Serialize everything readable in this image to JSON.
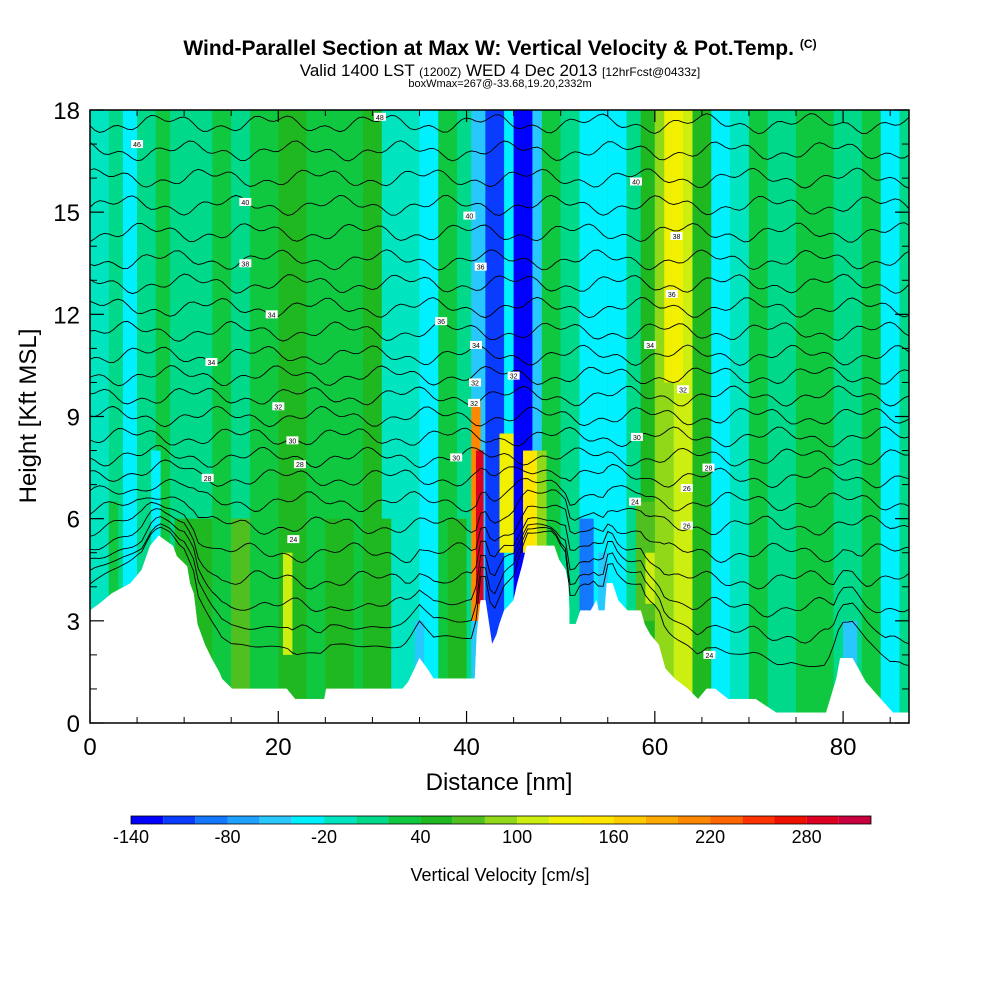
{
  "header": {
    "title": "Wind-Parallel Section at Max W: Vertical Velocity & Pot.Temp.",
    "copyright": "(C)",
    "valid_prefix": "Valid 1400 LST",
    "valid_zulu": "(1200Z)",
    "valid_date": "WED 4 Dec 2013",
    "forecast_info": "[12hrFcst@0433z]",
    "box_info": "boxWmax=267@-33.68,19.20,2332m"
  },
  "chart_data": {
    "type": "heatmap",
    "title": "Wind-Parallel Section at Max W: Vertical Velocity & Pot.Temp.",
    "xlabel": "Distance [nm]",
    "ylabel": "Height [Kft MSL]",
    "xlim": [
      0,
      87
    ],
    "ylim": [
      0,
      18
    ],
    "x_ticks": [
      0,
      20,
      40,
      60,
      80
    ],
    "x_tick_labels": [
      "0",
      "20",
      "40",
      "60",
      "80"
    ],
    "y_ticks": [
      0,
      3,
      6,
      9,
      12,
      15,
      18
    ],
    "y_tick_labels": [
      "0",
      "3",
      "6",
      "9",
      "12",
      "15",
      "18"
    ],
    "colorbar": {
      "label": "Vertical Velocity [cm/s]",
      "levels": [
        -140,
        -120,
        -100,
        -80,
        -60,
        -40,
        -20,
        0,
        20,
        40,
        60,
        80,
        100,
        120,
        140,
        160,
        180,
        200,
        220,
        240,
        260,
        280,
        300,
        320
      ],
      "tick_values": [
        -140,
        -80,
        -20,
        40,
        100,
        160,
        220,
        280
      ],
      "tick_labels": [
        "-140",
        "-80",
        "-20",
        "40",
        "100",
        "160",
        "220",
        "280"
      ],
      "colors": [
        "#0000ff",
        "#0a3cff",
        "#1478ff",
        "#1ea0ff",
        "#28c8ff",
        "#00f0ff",
        "#00e5c0",
        "#00d88a",
        "#10c840",
        "#20b820",
        "#50c020",
        "#90d818",
        "#ccee10",
        "#f0f000",
        "#ffe600",
        "#ffcc00",
        "#ffaa00",
        "#ff8800",
        "#ff6600",
        "#ff3300",
        "#ee1100",
        "#dd0022",
        "#c80040"
      ]
    },
    "velocity_columns": [
      {
        "x": [
          0,
          2
        ],
        "w": -5
      },
      {
        "x": [
          2,
          3.5
        ],
        "w": 5
      },
      {
        "x": [
          3.5,
          5
        ],
        "w": -40
      },
      {
        "x": [
          5,
          7
        ],
        "w": 10
      },
      {
        "x": [
          7,
          8.5
        ],
        "w": 25
      },
      {
        "x": [
          8.5,
          13
        ],
        "w": 10
      },
      {
        "x": [
          13,
          15
        ],
        "w": 30
      },
      {
        "x": [
          15,
          17
        ],
        "w": 15
      },
      {
        "x": [
          17,
          20
        ],
        "w": 35
      },
      {
        "x": [
          20,
          23
        ],
        "w": 55
      },
      {
        "x": [
          23,
          26
        ],
        "w": 20
      },
      {
        "x": [
          26,
          29
        ],
        "w": 35
      },
      {
        "x": [
          29,
          31
        ],
        "w": 45
      },
      {
        "x": [
          31,
          35
        ],
        "w": -10
      },
      {
        "x": [
          35,
          37
        ],
        "w": -30
      },
      {
        "x": [
          37,
          39
        ],
        "w": 20
      },
      {
        "x": [
          39,
          40.5
        ],
        "w": 0
      },
      {
        "x": [
          40.5,
          42
        ],
        "w": -60
      },
      {
        "x": [
          42,
          44
        ],
        "w": -120
      },
      {
        "x": [
          44,
          45
        ],
        "w": -40
      },
      {
        "x": [
          45,
          47
        ],
        "w": -140
      },
      {
        "x": [
          47,
          48
        ],
        "w": -60
      },
      {
        "x": [
          48,
          50
        ],
        "w": 30
      },
      {
        "x": [
          50,
          52
        ],
        "w": 10
      },
      {
        "x": [
          52,
          55
        ],
        "w": -30
      },
      {
        "x": [
          55,
          57
        ],
        "w": -40
      },
      {
        "x": [
          57,
          58.5
        ],
        "w": 5
      },
      {
        "x": [
          58.5,
          60
        ],
        "w": 40
      },
      {
        "x": [
          60,
          62
        ],
        "w": 85
      },
      {
        "x": [
          62,
          64
        ],
        "w": 110
      },
      {
        "x": [
          64,
          66
        ],
        "w": 50
      },
      {
        "x": [
          66,
          68
        ],
        "w": -25
      },
      {
        "x": [
          68,
          70
        ],
        "w": -15
      },
      {
        "x": [
          70,
          72
        ],
        "w": 20
      },
      {
        "x": [
          72,
          75
        ],
        "w": 0
      },
      {
        "x": [
          75,
          79
        ],
        "w": 20
      },
      {
        "x": [
          79,
          82
        ],
        "w": 5
      },
      {
        "x": [
          82,
          84
        ],
        "w": 20
      },
      {
        "x": [
          84,
          86
        ],
        "w": -30
      },
      {
        "x": [
          86,
          87
        ],
        "w": 15
      }
    ],
    "velocity_features": [
      {
        "x": [
          2,
          3
        ],
        "y": [
          0,
          6.5
        ],
        "w": 25
      },
      {
        "x": [
          6.5,
          7.5
        ],
        "y": [
          4,
          8
        ],
        "w": -30
      },
      {
        "x": [
          9,
          13
        ],
        "y": [
          0,
          6
        ],
        "w": 40
      },
      {
        "x": [
          15,
          17
        ],
        "y": [
          0,
          6
        ],
        "w": 60
      },
      {
        "x": [
          20.5,
          21.5
        ],
        "y": [
          2,
          5
        ],
        "w": 110
      },
      {
        "x": [
          25,
          28
        ],
        "y": [
          0,
          6
        ],
        "w": 40
      },
      {
        "x": [
          30,
          32
        ],
        "y": [
          0,
          6
        ],
        "w": 50
      },
      {
        "x": [
          34.5,
          35.5
        ],
        "y": [
          1,
          3
        ],
        "w": -60
      },
      {
        "x": [
          38,
          40
        ],
        "y": [
          0,
          6
        ],
        "w": 50
      },
      {
        "x": [
          40.5,
          41.5
        ],
        "y": [
          3,
          9.5
        ],
        "w": 200
      },
      {
        "x": [
          41,
          41.8
        ],
        "y": [
          3.5,
          8
        ],
        "w": 280
      },
      {
        "x": [
          43.5,
          45
        ],
        "y": [
          5,
          8.5
        ],
        "w": 120
      },
      {
        "x": [
          46,
          47.5
        ],
        "y": [
          5,
          8
        ],
        "w": 140
      },
      {
        "x": [
          47.5,
          48.5
        ],
        "y": [
          5,
          8
        ],
        "w": 80
      },
      {
        "x": [
          52,
          53.5
        ],
        "y": [
          3,
          6
        ],
        "w": -90
      },
      {
        "x": [
          54,
          55
        ],
        "y": [
          3,
          5
        ],
        "w": -60
      },
      {
        "x": [
          58,
          60
        ],
        "y": [
          3,
          6.5
        ],
        "w": 60
      },
      {
        "x": [
          59,
          60
        ],
        "y": [
          3.5,
          5
        ],
        "w": 100
      },
      {
        "x": [
          61,
          63
        ],
        "y": [
          10,
          18
        ],
        "w": 130
      },
      {
        "x": [
          80,
          81.5
        ],
        "y": [
          0,
          3
        ],
        "w": -50
      }
    ],
    "terrain_height_kft": [
      [
        0,
        3.3
      ],
      [
        1,
        3.5
      ],
      [
        2.3,
        3.8
      ],
      [
        4.3,
        4.1
      ],
      [
        5.5,
        4.5
      ],
      [
        6.4,
        5.2
      ],
      [
        7.3,
        5.5
      ],
      [
        8.8,
        5.2
      ],
      [
        9.2,
        4.9
      ],
      [
        10.3,
        4.6
      ],
      [
        10.6,
        4.1
      ],
      [
        11.0,
        3.8
      ],
      [
        11.4,
        2.9
      ],
      [
        12.2,
        2.3
      ],
      [
        12.9,
        1.9
      ],
      [
        13.7,
        1.5
      ],
      [
        14.0,
        1.3
      ],
      [
        15.1,
        1.0
      ],
      [
        17.5,
        1.0
      ],
      [
        20.9,
        1.0
      ],
      [
        21.8,
        0.7
      ],
      [
        24.9,
        0.7
      ],
      [
        25.1,
        1.0
      ],
      [
        28.3,
        1.0
      ],
      [
        32.5,
        1.0
      ],
      [
        33.2,
        1.0
      ],
      [
        33.8,
        1.2
      ],
      [
        34.5,
        1.6
      ],
      [
        35.0,
        1.9
      ],
      [
        35.8,
        1.6
      ],
      [
        36.5,
        1.3
      ],
      [
        37.8,
        1.3
      ],
      [
        39.2,
        1.3
      ],
      [
        40.9,
        1.3
      ],
      [
        41.1,
        2.6
      ],
      [
        41.5,
        3.6
      ],
      [
        42.0,
        3.6
      ],
      [
        42.7,
        2.3
      ],
      [
        43.2,
        2.6
      ],
      [
        43.5,
        2.9
      ],
      [
        44.0,
        3.3
      ],
      [
        45.0,
        3.6
      ],
      [
        45.4,
        4.1
      ],
      [
        45.9,
        4.6
      ],
      [
        46.4,
        5.2
      ],
      [
        47.1,
        5.2
      ],
      [
        48.0,
        5.2
      ],
      [
        49.3,
        5.2
      ],
      [
        49.8,
        4.8
      ],
      [
        50.5,
        4.5
      ],
      [
        50.8,
        4.1
      ],
      [
        50.9,
        3.3
      ],
      [
        50.9,
        2.9
      ],
      [
        51.6,
        2.9
      ],
      [
        52.1,
        3.3
      ],
      [
        53.2,
        3.3
      ],
      [
        53.8,
        3.6
      ],
      [
        54.0,
        3.3
      ],
      [
        54.7,
        3.3
      ],
      [
        54.9,
        4.1
      ],
      [
        55.5,
        4.1
      ],
      [
        56.1,
        3.6
      ],
      [
        57.1,
        3.3
      ],
      [
        58.5,
        3.3
      ],
      [
        58.9,
        2.9
      ],
      [
        59.5,
        2.6
      ],
      [
        60.4,
        2.3
      ],
      [
        61.1,
        1.6
      ],
      [
        62.1,
        1.3
      ],
      [
        63.5,
        1.0
      ],
      [
        64.6,
        0.7
      ],
      [
        65.5,
        1.0
      ],
      [
        66.4,
        1.0
      ],
      [
        67.8,
        0.7
      ],
      [
        70.7,
        0.7
      ],
      [
        72.9,
        0.3
      ],
      [
        75.5,
        0.3
      ],
      [
        78.2,
        0.3
      ],
      [
        79.3,
        1.3
      ],
      [
        79.7,
        1.9
      ],
      [
        81.0,
        1.9
      ],
      [
        81.6,
        1.6
      ],
      [
        82.4,
        1.2
      ],
      [
        84.0,
        0.7
      ],
      [
        85.3,
        0.3
      ],
      [
        86.5,
        0.3
      ],
      [
        87.0,
        0.3
      ]
    ],
    "isentrope_heights_kft": [
      1.7,
      2.6,
      3.4,
      4.2,
      5.0,
      5.8,
      6.5,
      7.2,
      7.8,
      8.4,
      9.0,
      9.6,
      10.2,
      10.8,
      11.5,
      12.2,
      12.9,
      13.6,
      14.4,
      15.2,
      16.0,
      16.8,
      17.6
    ],
    "isentrope_labels": [
      {
        "x": 30.8,
        "y": 17.8,
        "text": "48"
      },
      {
        "x": 5.0,
        "y": 17.0,
        "text": "46"
      },
      {
        "x": 16.5,
        "y": 15.3,
        "text": "40"
      },
      {
        "x": 58.0,
        "y": 15.9,
        "text": "40"
      },
      {
        "x": 40.3,
        "y": 14.9,
        "text": "40"
      },
      {
        "x": 62.3,
        "y": 14.3,
        "text": "38"
      },
      {
        "x": 16.5,
        "y": 13.5,
        "text": "38"
      },
      {
        "x": 41.5,
        "y": 13.4,
        "text": "36"
      },
      {
        "x": 61.8,
        "y": 12.6,
        "text": "36"
      },
      {
        "x": 19.3,
        "y": 12.0,
        "text": "34"
      },
      {
        "x": 37.3,
        "y": 11.8,
        "text": "36"
      },
      {
        "x": 41.0,
        "y": 11.1,
        "text": "34"
      },
      {
        "x": 59.5,
        "y": 11.1,
        "text": "34"
      },
      {
        "x": 12.9,
        "y": 10.6,
        "text": "34"
      },
      {
        "x": 45.0,
        "y": 10.2,
        "text": "32"
      },
      {
        "x": 40.9,
        "y": 10.0,
        "text": "32"
      },
      {
        "x": 63.0,
        "y": 9.8,
        "text": "32"
      },
      {
        "x": 40.8,
        "y": 9.4,
        "text": "32"
      },
      {
        "x": 20.0,
        "y": 9.3,
        "text": "32"
      },
      {
        "x": 58.1,
        "y": 8.4,
        "text": "30"
      },
      {
        "x": 21.5,
        "y": 8.3,
        "text": "30"
      },
      {
        "x": 38.9,
        "y": 7.8,
        "text": "30"
      },
      {
        "x": 22.3,
        "y": 7.6,
        "text": "28"
      },
      {
        "x": 65.7,
        "y": 7.5,
        "text": "28"
      },
      {
        "x": 12.5,
        "y": 7.2,
        "text": "28"
      },
      {
        "x": 63.4,
        "y": 6.9,
        "text": "26"
      },
      {
        "x": 57.9,
        "y": 6.5,
        "text": "24"
      },
      {
        "x": 63.4,
        "y": 5.8,
        "text": "26"
      },
      {
        "x": 21.6,
        "y": 5.4,
        "text": "24"
      },
      {
        "x": 65.8,
        "y": 2.0,
        "text": "24"
      }
    ]
  }
}
